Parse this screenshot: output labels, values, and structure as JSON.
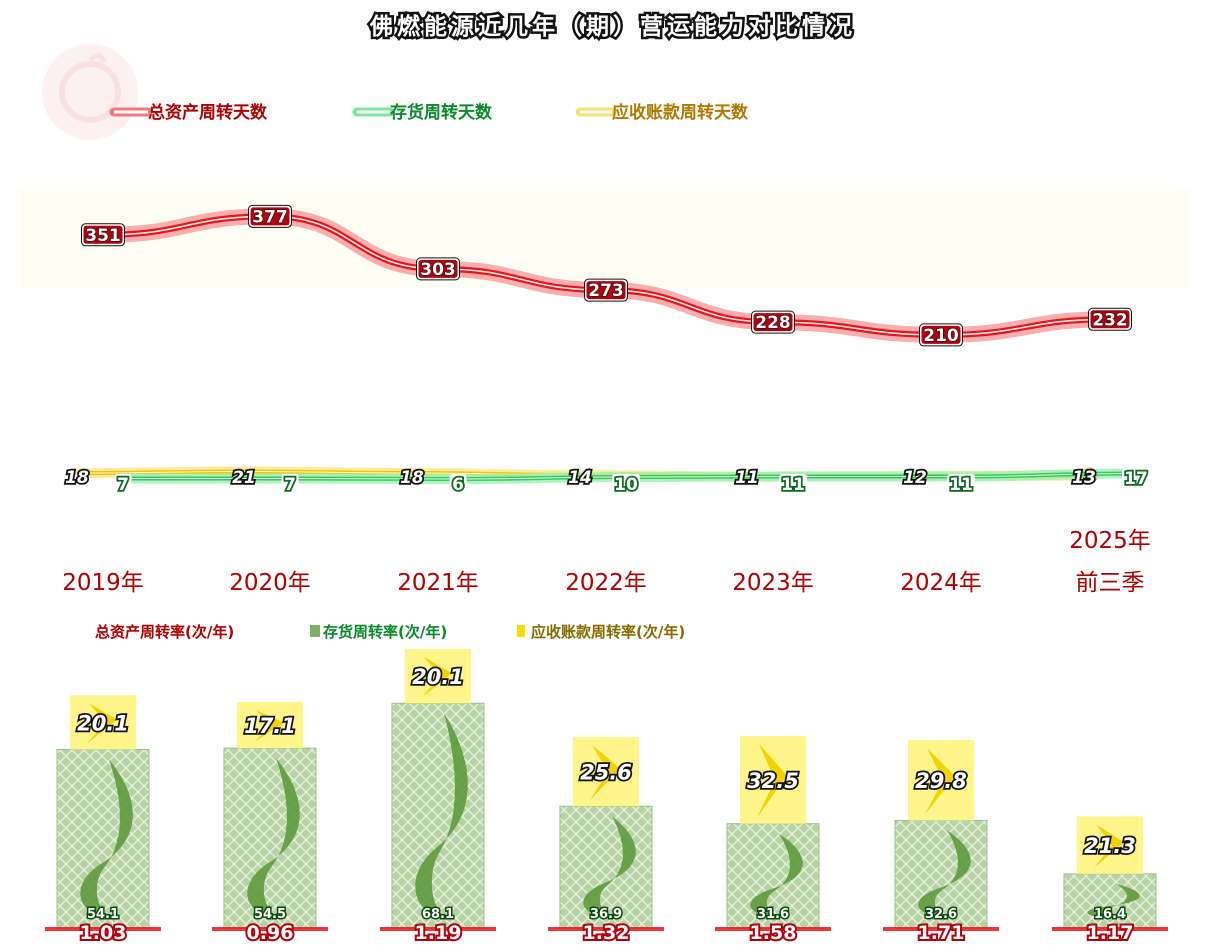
{
  "chart_data": [
    {
      "type": "line",
      "title": "佛燃能源近几年（期）营运能力对比情况",
      "categories": [
        "2019年",
        "2020年",
        "2021年",
        "2022年",
        "2023年",
        "2024年",
        "2025年前三季"
      ],
      "category_lines": [
        [
          "2019年"
        ],
        [
          "2020年"
        ],
        [
          "2021年"
        ],
        [
          "2022年"
        ],
        [
          "2023年"
        ],
        [
          "2024年"
        ],
        [
          "2025年",
          "前三季"
        ]
      ],
      "series": [
        {
          "name": "总资产周转天数",
          "color": "#e8141b",
          "values": [
            351,
            377,
            303,
            273,
            228,
            210,
            232
          ]
        },
        {
          "name": "存货周转天数",
          "color": "#1db84a",
          "values": [
            7,
            7,
            6,
            10,
            11,
            11,
            17
          ]
        },
        {
          "name": "应收账款周转天数",
          "color": "#f5c400",
          "values": [
            18,
            21,
            18,
            14,
            11,
            12,
            13
          ]
        }
      ],
      "legend_position": "top",
      "grid": false
    },
    {
      "type": "bar",
      "categories": [
        "2019年",
        "2020年",
        "2021年",
        "2022年",
        "2023年",
        "2024年",
        "2025年前三季"
      ],
      "stacked": true,
      "series": [
        {
          "name": "总资产周转率(次/年)",
          "color": "#e8141b",
          "values": [
            1.03,
            0.96,
            1.19,
            1.32,
            1.58,
            1.71,
            1.17
          ]
        },
        {
          "name": "存货周转率(次/年)",
          "color": "#5a9a3c",
          "values": [
            54.1,
            54.5,
            68.1,
            36.9,
            31.6,
            32.6,
            16.4
          ]
        },
        {
          "name": "应收账款周转率(次/年)",
          "color": "#f5e000",
          "values": [
            20.1,
            17.1,
            20.1,
            25.6,
            32.5,
            29.8,
            21.3
          ]
        }
      ],
      "legend_position": "top-left",
      "grid": false
    }
  ],
  "colors": {
    "title_fill": "#ffffff",
    "title_stroke": "#111111",
    "category_text": "#b00000",
    "asset_legend": "#b00000",
    "inventory_legend": "#0a8a2a",
    "receivable_legend": "#b07800"
  }
}
